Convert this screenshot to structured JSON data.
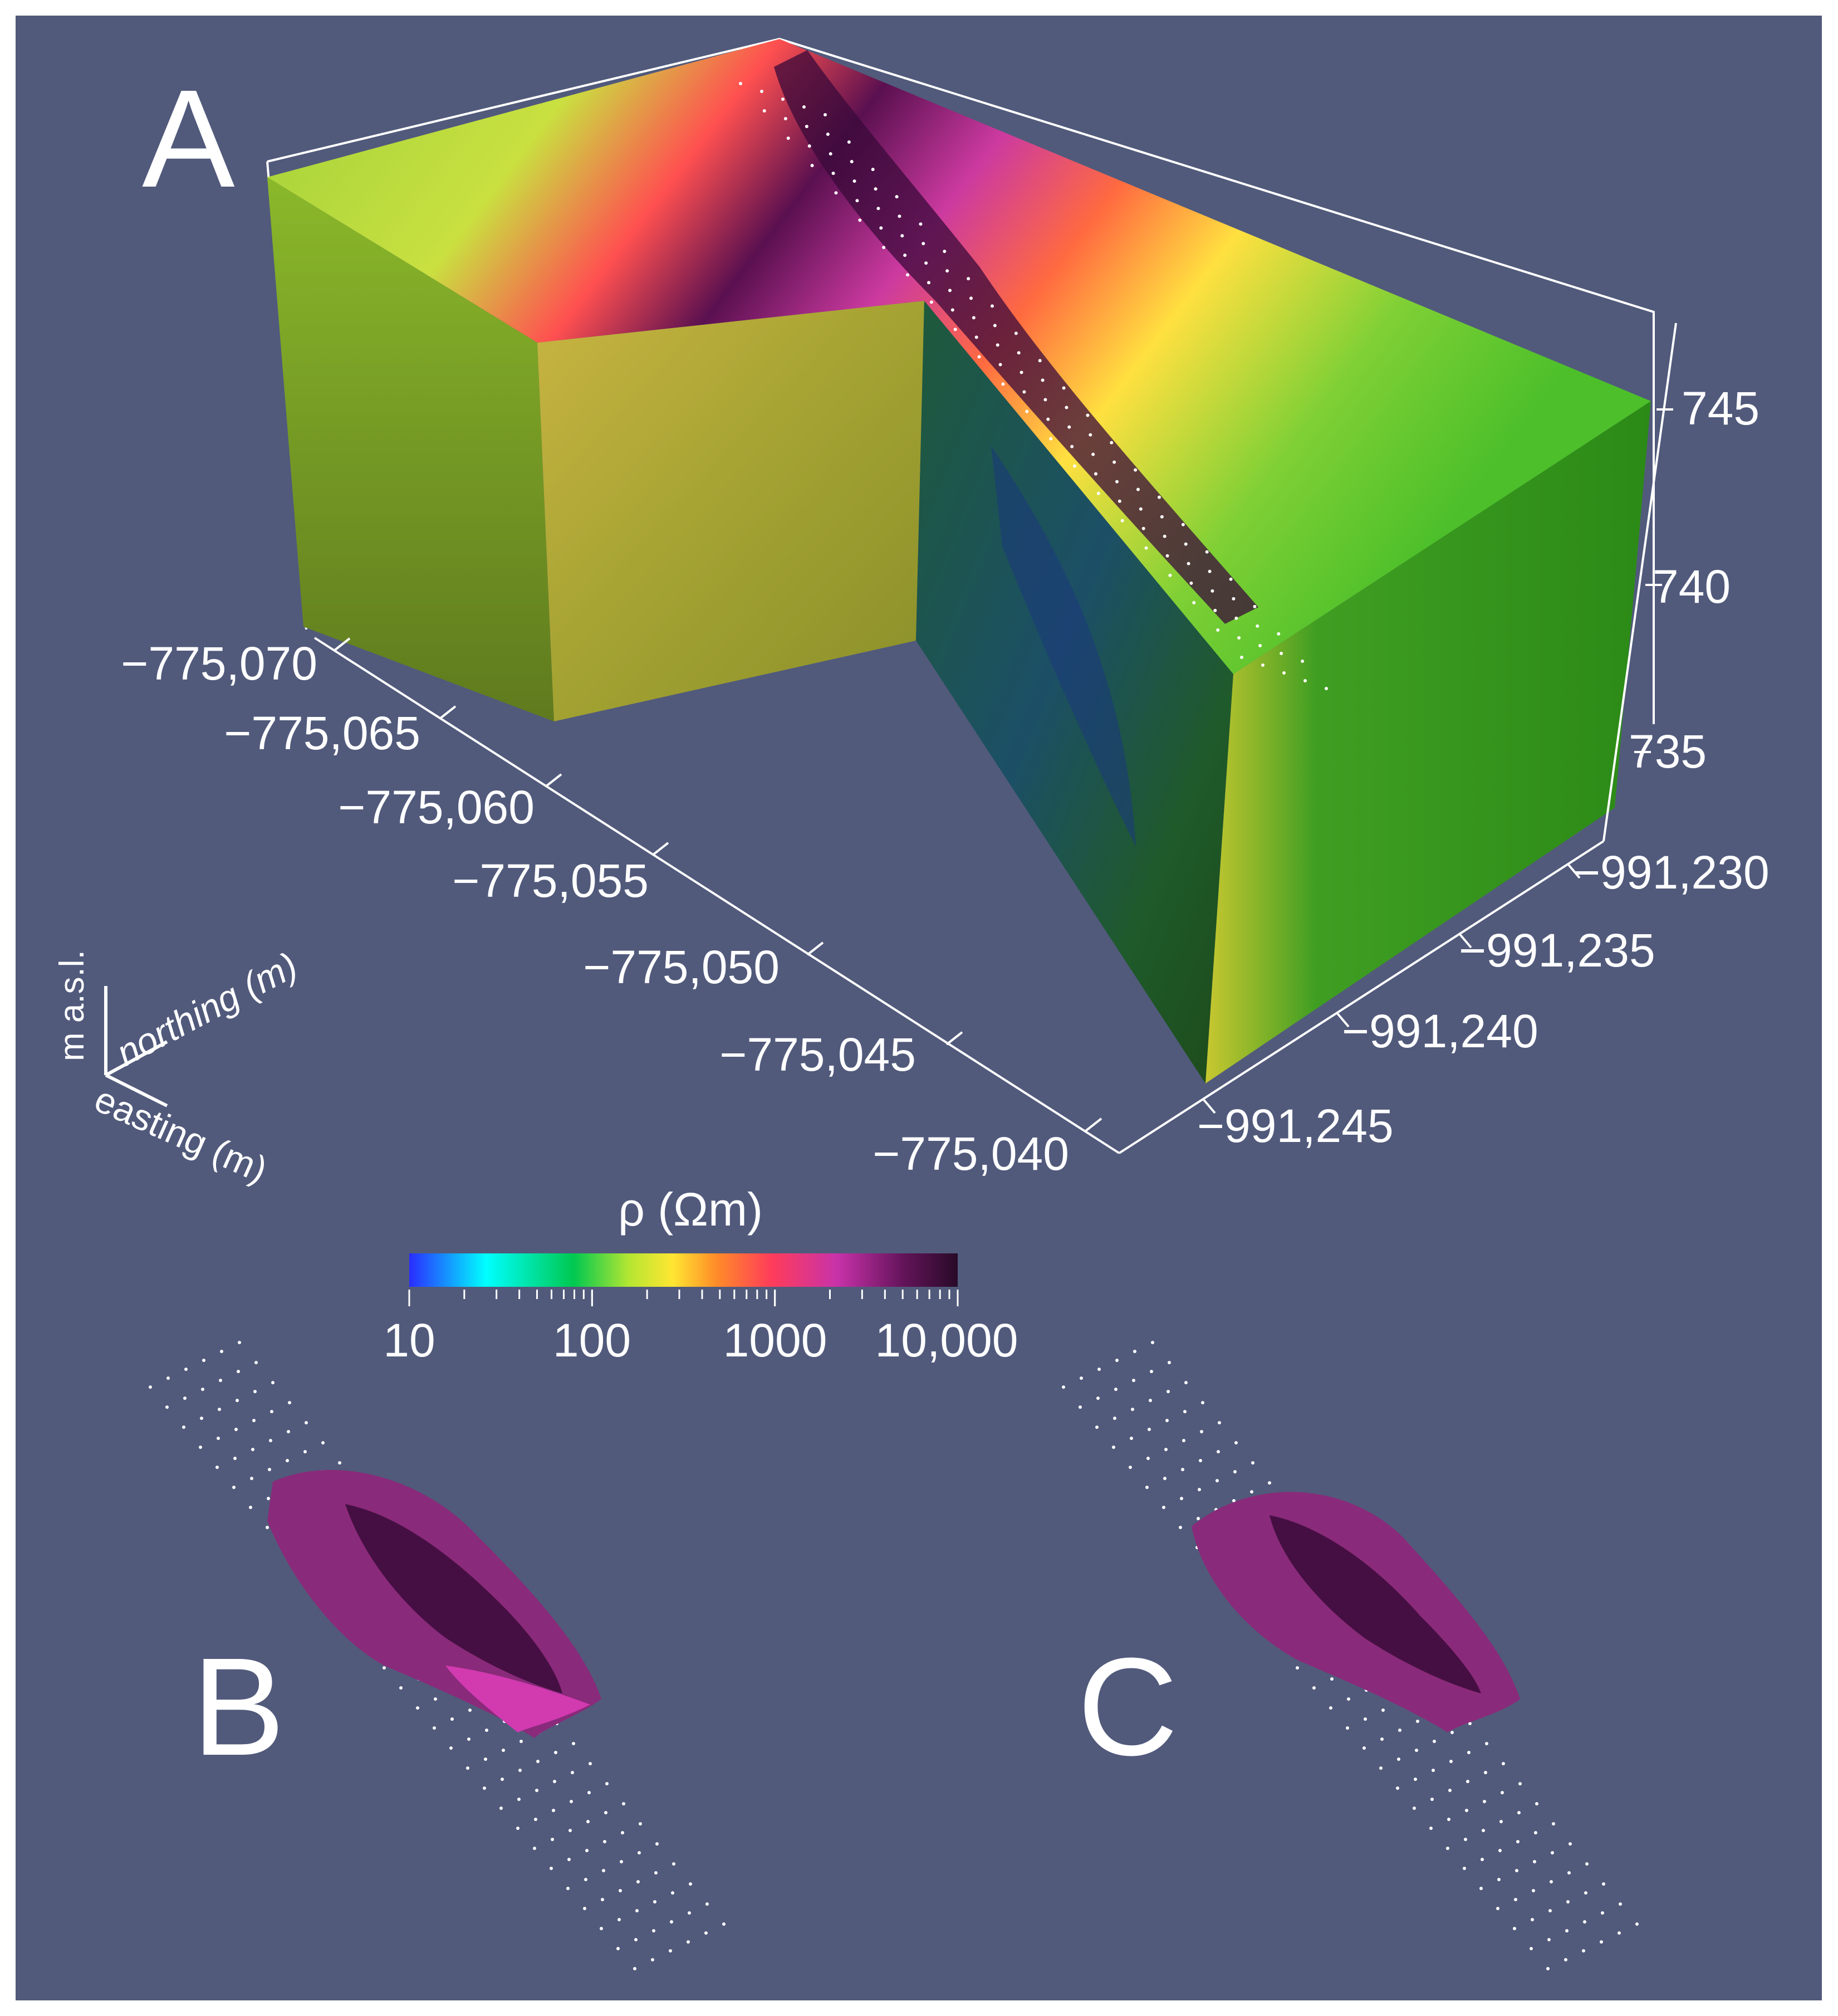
{
  "colors": {
    "background": "#515a7b",
    "frame": "#ffffff",
    "axis": "#ffffff",
    "text": "#ffffff",
    "colormap": [
      "#2a2cff",
      "#00ffff",
      "#00c850",
      "#b4e632",
      "#ffe632",
      "#ff8c28",
      "#ff3c5a",
      "#c832aa",
      "#64145a",
      "#280a28"
    ]
  },
  "panels": {
    "a": {
      "label": "A"
    },
    "b": {
      "label": "B"
    },
    "c": {
      "label": "C"
    }
  },
  "axes": {
    "easting_ticks": [
      "−775,070",
      "−775,065",
      "−775,060",
      "−775,055",
      "−775,050",
      "−775,045",
      "−775,040"
    ],
    "northing_ticks": [
      "−991,230",
      "−991,235",
      "−991,240",
      "−991,245"
    ],
    "elevation_ticks": [
      "745",
      "740",
      "735"
    ]
  },
  "orientation": {
    "vertical": "m a.s.l.",
    "northing": "northing (m)",
    "easting": "easting (m)"
  },
  "colorbar": {
    "title": "ρ (Ωm)",
    "scale": "log",
    "min": 10,
    "max": 10000,
    "tick_labels": [
      "10",
      "100",
      "1000",
      "10,000"
    ]
  }
}
